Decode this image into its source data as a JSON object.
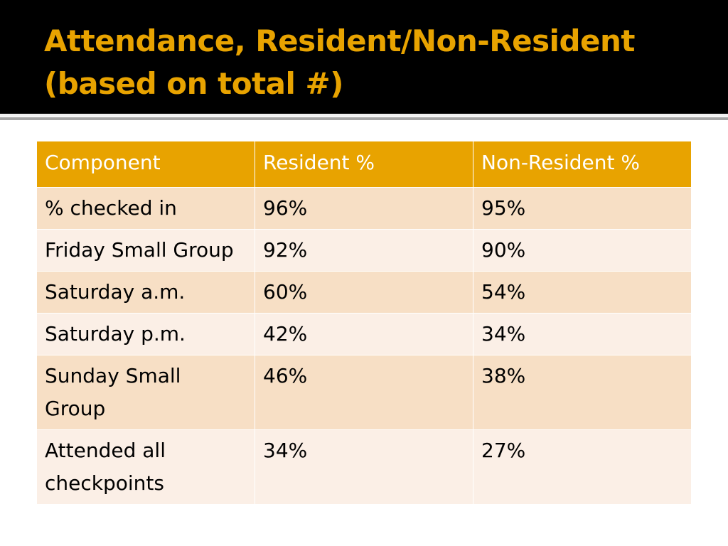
{
  "slide": {
    "title": "Attendance, Resident/Non-Resident (based on total #)",
    "title_color": "#e8a300",
    "title_band_color": "#000000"
  },
  "table": {
    "header_color": "#e8a300",
    "row_color_odd": "#f7dfc5",
    "row_color_even": "#fbefe6",
    "headers": [
      "Component",
      "Resident %",
      "Non-Resident %"
    ],
    "rows": [
      [
        "% checked in",
        "96%",
        "95%"
      ],
      [
        "Friday Small Group",
        "92%",
        "90%"
      ],
      [
        "Saturday a.m.",
        "60%",
        "54%"
      ],
      [
        "Saturday p.m.",
        "42%",
        "34%"
      ],
      [
        "Sunday Small Group",
        "46%",
        "38%"
      ],
      [
        "Attended all checkpoints",
        "34%",
        "27%"
      ]
    ]
  }
}
